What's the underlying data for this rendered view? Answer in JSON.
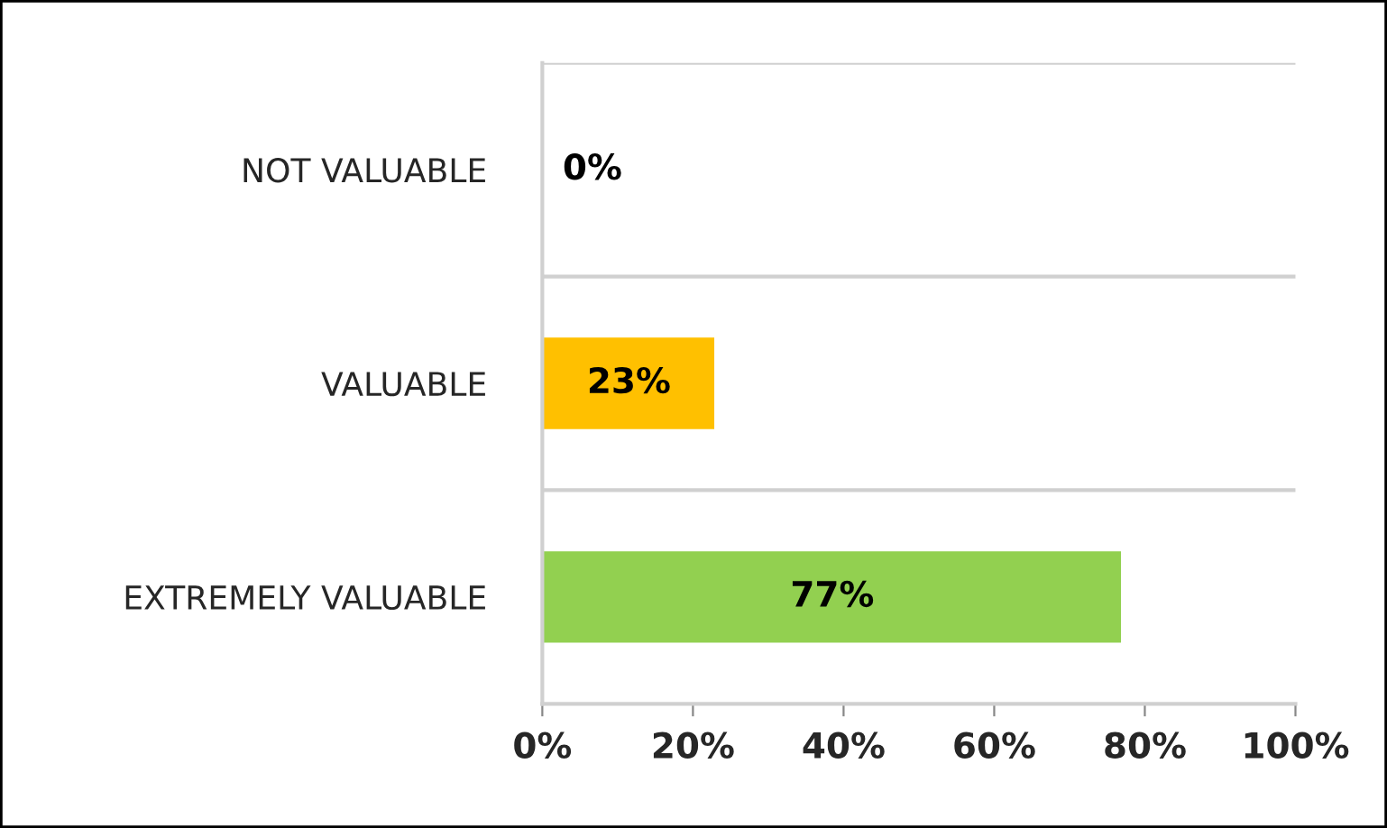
{
  "chart_data": {
    "type": "bar",
    "orientation": "horizontal",
    "categories": [
      "NOT VALUABLE",
      "VALUABLE",
      "EXTREMELY VALUABLE"
    ],
    "values": [
      0,
      23,
      77
    ],
    "colors": [
      null,
      "#ffc000",
      "#92d050"
    ],
    "value_labels": [
      "0%",
      "23%",
      "77%"
    ],
    "xlim": [
      0,
      100
    ],
    "xticks": [
      {
        "value": 0,
        "label": "0%"
      },
      {
        "value": 20,
        "label": "20%"
      },
      {
        "value": 40,
        "label": "40%"
      },
      {
        "value": 60,
        "label": "60%"
      },
      {
        "value": 80,
        "label": "80%"
      },
      {
        "value": 100,
        "label": "100%"
      }
    ],
    "grid": "y",
    "legend": false
  }
}
